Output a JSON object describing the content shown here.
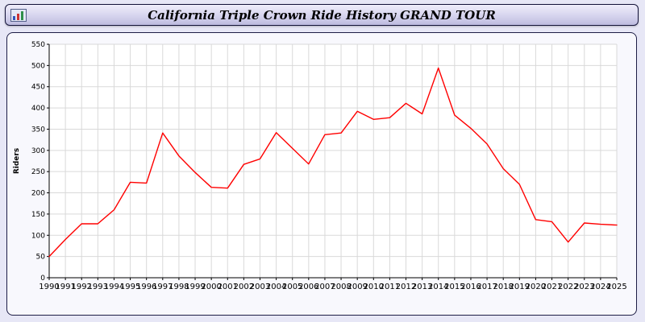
{
  "header": {
    "title": "California Triple Crown Ride History GRAND TOUR"
  },
  "chart_data": {
    "type": "line",
    "title": "California Triple Crown Ride History GRAND TOUR",
    "xlabel": "",
    "ylabel": "Riders",
    "ylim": [
      0,
      550
    ],
    "ytick_step": 50,
    "grid": true,
    "legend": "none",
    "line_color": "#ff0000",
    "categories": [
      "1990",
      "1991",
      "1992",
      "1993",
      "1994",
      "1995",
      "1996",
      "1997",
      "1998",
      "1999",
      "2000",
      "2001",
      "2002",
      "2003",
      "2004",
      "2005",
      "2006",
      "2007",
      "2008",
      "2009",
      "2010",
      "2011",
      "2012",
      "2013",
      "2014",
      "2015",
      "2016",
      "2017",
      "2018",
      "2019",
      "2020",
      "2021",
      "2022",
      "2023",
      "2024",
      "2025"
    ],
    "values": [
      50,
      90,
      127,
      127,
      160,
      225,
      223,
      341,
      287,
      248,
      213,
      211,
      267,
      280,
      342,
      305,
      268,
      337,
      341,
      392,
      373,
      377,
      411,
      386,
      494,
      383,
      352,
      315,
      257,
      220,
      137,
      132,
      84,
      129,
      126,
      124
    ]
  },
  "colors": {
    "accent_lavender": "#d6d4ee",
    "series_red": "#ff0000",
    "grid_gray": "#d9d9d9"
  }
}
